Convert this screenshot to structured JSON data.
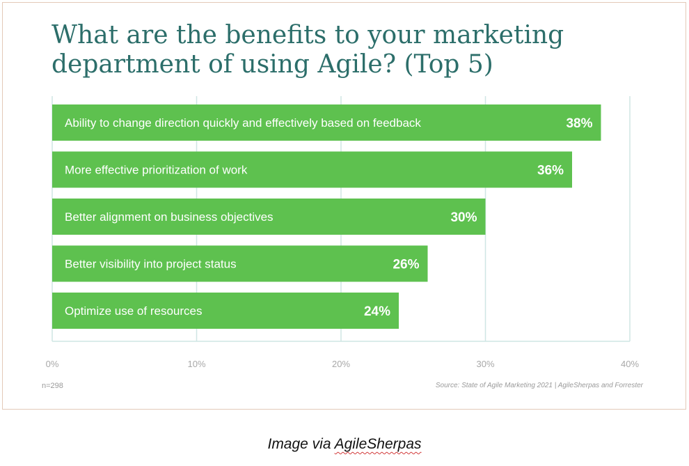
{
  "chart_data": {
    "type": "bar",
    "orientation": "horizontal",
    "title": "What are the benefits to your marketing department of using Agile? (Top 5)",
    "categories": [
      "Ability to change direction quickly and effectively based on feedback",
      "More effective prioritization of work",
      "Better alignment on business objectives",
      "Better visibility into project status",
      "Optimize use of resources"
    ],
    "values": [
      38,
      36,
      30,
      26,
      24
    ],
    "value_labels": [
      "38%",
      "36%",
      "30%",
      "26%",
      "24%"
    ],
    "xlim": [
      0,
      40
    ],
    "x_ticks": [
      0,
      10,
      20,
      30,
      40
    ],
    "x_tick_labels": [
      "0%",
      "10%",
      "20%",
      "30%",
      "40%"
    ],
    "grid": true,
    "bar_color": "#5ec14f",
    "grid_color": "#cfe6e4",
    "title_color": "#2c6e6a",
    "sample_size": "n=298",
    "source": "Source: State of Agile Marketing 2021 | AgileSherpas and Forrester"
  },
  "caption": {
    "prefix": "Image via ",
    "link": "AgileSherpas"
  }
}
